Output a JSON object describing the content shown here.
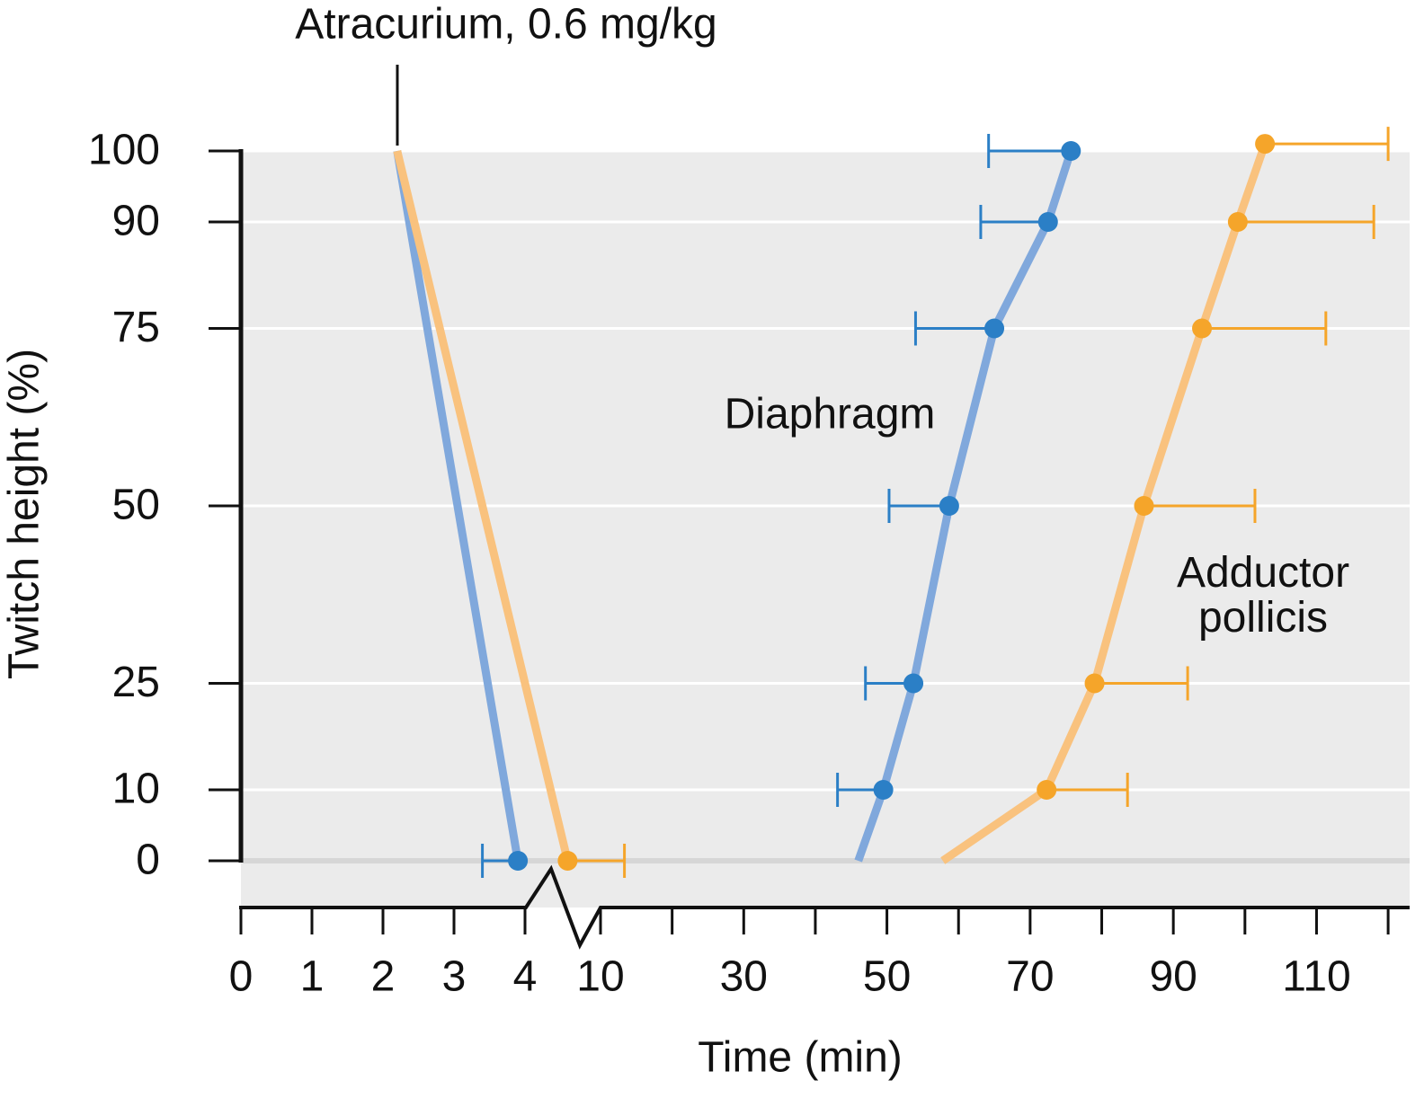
{
  "chart_data": {
    "type": "line",
    "annotation": "Atracurium, 0.6 mg/kg",
    "x_label": "Time (min)",
    "y_label": "Twitch height (%)",
    "ylim": [
      0,
      100
    ],
    "yticks": [
      0,
      10,
      25,
      50,
      75,
      90,
      100
    ],
    "xlim": [
      0,
      123
    ],
    "xbreak": [
      4,
      10
    ],
    "xticks": [
      0,
      1,
      2,
      3,
      4,
      10,
      30,
      50,
      70,
      90,
      110
    ],
    "xminor_ticks": [
      20,
      40,
      60,
      80,
      100,
      120
    ],
    "grid": true,
    "series": [
      {
        "name": "Diaphragm",
        "color": "#2b7fc6",
        "line_color": "#80a8dc",
        "xerr_side": "minus",
        "line_x": [
          2.2,
          3.9,
          null,
          46,
          49.5,
          53.7,
          58.7,
          65,
          72.5,
          75.7
        ],
        "line_y": [
          100,
          0,
          null,
          0,
          10,
          25,
          50,
          75,
          90,
          100
        ],
        "x": [
          3.9,
          49.5,
          53.7,
          58.7,
          65,
          72.5,
          75.7
        ],
        "values": [
          0,
          10,
          25,
          50,
          75,
          90,
          100
        ],
        "xerr": [
          0.5,
          6.4,
          6.7,
          8.4,
          11,
          9.4,
          11.5
        ]
      },
      {
        "name": "Adductor pollicis",
        "color": "#f5a52a",
        "line_color": "#f9c27e",
        "xerr_side": "plus",
        "line_x": [
          2.2,
          4.6,
          null,
          57.8,
          72.3,
          79,
          85.9,
          94,
          99,
          102.8
        ],
        "line_y": [
          100,
          0,
          null,
          0,
          10,
          25,
          50,
          75,
          90,
          101
        ],
        "x": [
          4.6,
          72.3,
          79,
          85.9,
          94,
          99,
          102.8
        ],
        "values": [
          0,
          10,
          25,
          50,
          75,
          90,
          101
        ],
        "xerr": [
          0.8,
          11.3,
          13,
          15.5,
          17.3,
          19,
          17.2
        ]
      }
    ]
  }
}
